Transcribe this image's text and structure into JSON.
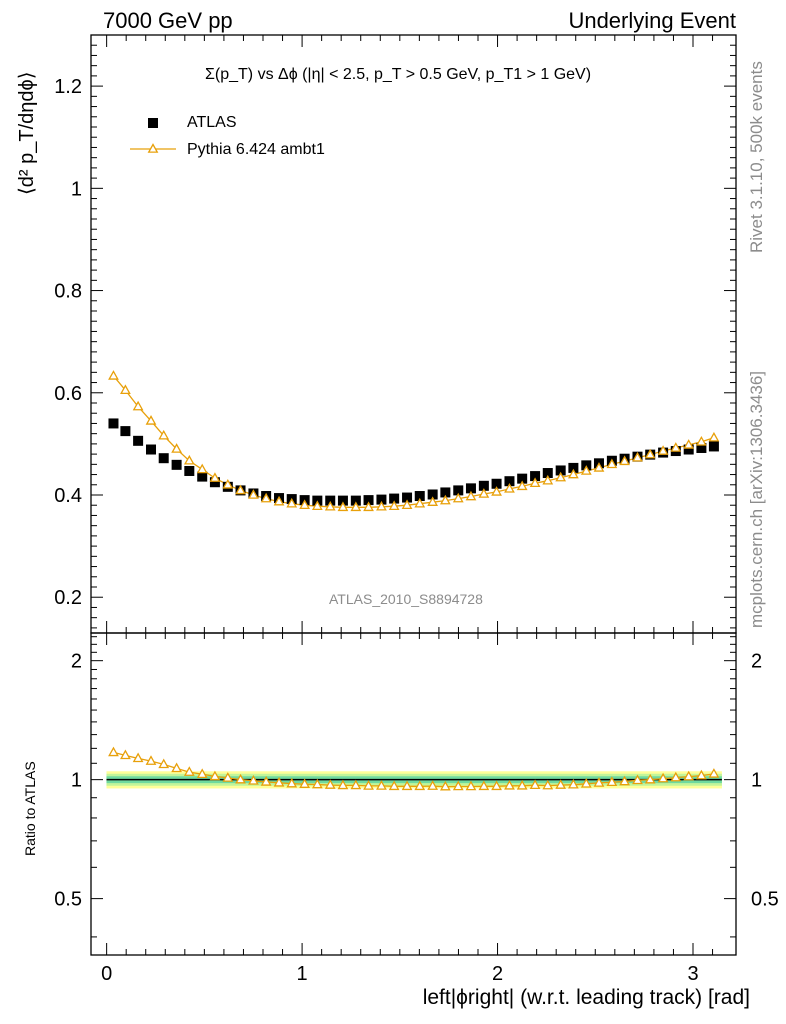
{
  "header": {
    "left": "7000 GeV pp",
    "right": "Underlying Event"
  },
  "side_labels": {
    "rivet": "Rivet 3.1.10,  500k events",
    "mcplots": "mcplots.cern.ch [arXiv:1306.3436]"
  },
  "watermark": "ATLAS_2010_S8894728",
  "plot_title": "Σ(p_T) vs Δϕ (|η| < 2.5, p_T > 0.5 GeV, p_T1 > 1 GeV)",
  "chart_data": [
    {
      "type": "scatter",
      "panel": "main",
      "ylabel": "⟨d² p_T/dηdϕ⟩",
      "xlim": [
        -0.08,
        3.22
      ],
      "ylim": [
        0.13,
        1.3
      ],
      "y_ticks": [
        0.2,
        0.4,
        0.6,
        0.8,
        1,
        1.2
      ],
      "y_tick_labels": [
        "0.2",
        "0.4",
        "0.6",
        "0.8",
        "1",
        "1.2"
      ],
      "legend_position": "top-left",
      "x": [
        0.035,
        0.096,
        0.161,
        0.227,
        0.292,
        0.358,
        0.423,
        0.489,
        0.554,
        0.62,
        0.685,
        0.751,
        0.816,
        0.882,
        0.947,
        1.013,
        1.078,
        1.144,
        1.209,
        1.275,
        1.34,
        1.406,
        1.471,
        1.537,
        1.602,
        1.668,
        1.733,
        1.799,
        1.864,
        1.93,
        1.995,
        2.061,
        2.126,
        2.192,
        2.257,
        2.323,
        2.388,
        2.454,
        2.519,
        2.585,
        2.65,
        2.716,
        2.781,
        2.847,
        2.912,
        2.978,
        3.043,
        3.107
      ],
      "series": [
        {
          "name": "ATLAS",
          "color": "#000000",
          "marker": "filled-square",
          "values": [
            0.54,
            0.525,
            0.506,
            0.489,
            0.472,
            0.459,
            0.447,
            0.436,
            0.425,
            0.416,
            0.409,
            0.403,
            0.398,
            0.394,
            0.392,
            0.39,
            0.389,
            0.389,
            0.389,
            0.389,
            0.39,
            0.391,
            0.393,
            0.395,
            0.398,
            0.401,
            0.405,
            0.409,
            0.413,
            0.418,
            0.422,
            0.427,
            0.432,
            0.437,
            0.443,
            0.448,
            0.453,
            0.458,
            0.462,
            0.467,
            0.471,
            0.475,
            0.479,
            0.483,
            0.486,
            0.489,
            0.492,
            0.495
          ]
        },
        {
          "name": "Pythia 6.424 ambt1",
          "color": "#e8a00a",
          "marker": "open-triangle",
          "values": [
            0.633,
            0.605,
            0.573,
            0.545,
            0.516,
            0.49,
            0.467,
            0.45,
            0.433,
            0.42,
            0.409,
            0.4,
            0.393,
            0.387,
            0.383,
            0.38,
            0.378,
            0.377,
            0.376,
            0.376,
            0.376,
            0.377,
            0.378,
            0.38,
            0.383,
            0.386,
            0.389,
            0.393,
            0.397,
            0.402,
            0.406,
            0.412,
            0.417,
            0.423,
            0.428,
            0.434,
            0.44,
            0.447,
            0.453,
            0.46,
            0.466,
            0.473,
            0.479,
            0.486,
            0.492,
            0.498,
            0.504,
            0.512
          ]
        }
      ]
    },
    {
      "type": "line",
      "panel": "ratio",
      "ylabel": "Ratio to ATLAS",
      "xlabel": "left|ϕright| (w.r.t. leading track) [rad]",
      "xlim": [
        -0.08,
        3.22
      ],
      "ylim": [
        0.36,
        2.35
      ],
      "log_y": true,
      "x_ticks": [
        0,
        1,
        2,
        3
      ],
      "x_tick_labels": [
        "0",
        "1",
        "2",
        "3"
      ],
      "y_ticks": [
        0.5,
        1,
        2
      ],
      "y_tick_labels": [
        "0.5",
        "1",
        "2"
      ],
      "bands": [
        {
          "low": 0.95,
          "high": 1.05,
          "color": "#ffff99"
        },
        {
          "low": 0.965,
          "high": 1.035,
          "color": "#c2f59a"
        },
        {
          "low": 0.98,
          "high": 1.02,
          "color": "#6fd99f"
        }
      ],
      "series": [
        {
          "name": "Pythia 6.424 ambt1 / ATLAS",
          "color": "#e8a00a",
          "marker": "open-triangle",
          "values": [
            1.172,
            1.152,
            1.132,
            1.114,
            1.093,
            1.068,
            1.045,
            1.032,
            1.019,
            1.01,
            1.0,
            0.993,
            0.987,
            0.982,
            0.977,
            0.974,
            0.972,
            0.969,
            0.967,
            0.967,
            0.964,
            0.964,
            0.962,
            0.962,
            0.962,
            0.963,
            0.96,
            0.961,
            0.961,
            0.962,
            0.962,
            0.965,
            0.965,
            0.968,
            0.966,
            0.969,
            0.971,
            0.976,
            0.981,
            0.985,
            0.989,
            0.996,
            1.0,
            1.006,
            1.012,
            1.018,
            1.024,
            1.034
          ]
        }
      ]
    }
  ]
}
